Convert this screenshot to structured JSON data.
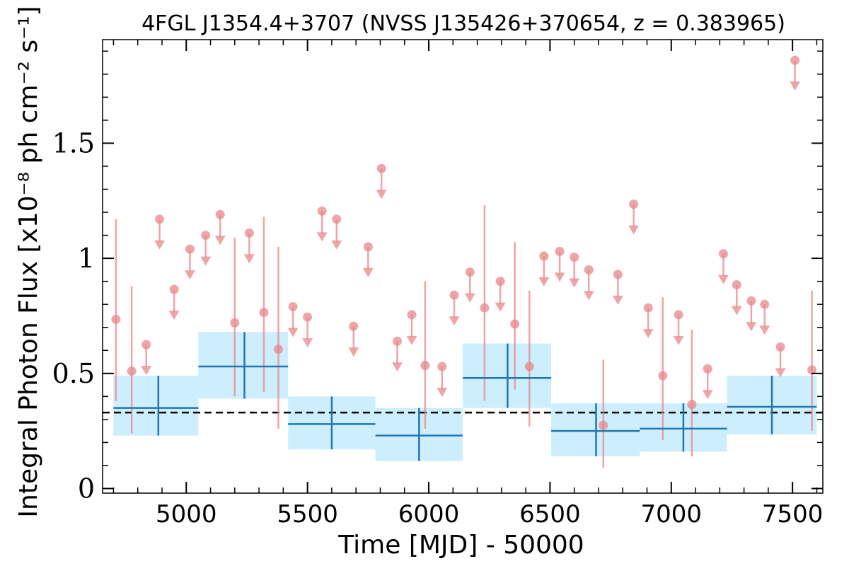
{
  "chart_data": {
    "type": "scatter",
    "title": "4FGL J1354.4+3707 (NVSS J135426+370654, z = 0.383965)",
    "xlabel": "Time [MJD] - 50000",
    "ylabel": "Integral Photon Flux [x10⁻⁸ ph cm⁻² s⁻¹]",
    "xlim": [
      4655,
      7625
    ],
    "ylim": [
      -0.02,
      1.95
    ],
    "x_ticks": [
      5000,
      5500,
      6000,
      6500,
      7000,
      7500
    ],
    "x_tick_labels": [
      "5000",
      "5500",
      "6000",
      "6500",
      "7000",
      "7500"
    ],
    "y_ticks": [
      0,
      0.5,
      1,
      1.5
    ],
    "y_tick_labels": [
      "0",
      "0.5",
      "1",
      "1.5"
    ],
    "mean_flux": 0.33,
    "colors": {
      "short_bins": "#e8878a",
      "long_bins": "#1f77b4",
      "long_bins_band": "#cdeefc",
      "mean_line": "#000000"
    },
    "long_bins": [
      {
        "x": 4885,
        "x_lo": 4700,
        "x_hi": 5050,
        "y": 0.35,
        "y_lo": 0.23,
        "y_hi": 0.49
      },
      {
        "x": 5240,
        "x_lo": 5050,
        "x_hi": 5420,
        "y": 0.53,
        "y_lo": 0.39,
        "y_hi": 0.68
      },
      {
        "x": 5600,
        "x_lo": 5420,
        "x_hi": 5780,
        "y": 0.28,
        "y_lo": 0.17,
        "y_hi": 0.4
      },
      {
        "x": 5960,
        "x_lo": 5780,
        "x_hi": 6140,
        "y": 0.23,
        "y_lo": 0.12,
        "y_hi": 0.35
      },
      {
        "x": 6325,
        "x_lo": 6140,
        "x_hi": 6505,
        "y": 0.48,
        "y_lo": 0.35,
        "y_hi": 0.63
      },
      {
        "x": 6690,
        "x_lo": 6505,
        "x_hi": 6870,
        "y": 0.25,
        "y_lo": 0.14,
        "y_hi": 0.37
      },
      {
        "x": 7050,
        "x_lo": 6870,
        "x_hi": 7230,
        "y": 0.26,
        "y_lo": 0.16,
        "y_hi": 0.37
      },
      {
        "x": 7415,
        "x_lo": 7230,
        "x_hi": 7600,
        "y": 0.355,
        "y_lo": 0.235,
        "y_hi": 0.49
      }
    ],
    "short_bins_detections": [
      {
        "x": 4710,
        "y": 0.735,
        "y_lo": 0.38,
        "y_hi": 1.17
      },
      {
        "x": 4775,
        "y": 0.51,
        "y_lo": 0.24,
        "y_hi": 0.88
      },
      {
        "x": 5200,
        "y": 0.72,
        "y_lo": 0.4,
        "y_hi": 1.09
      },
      {
        "x": 5320,
        "y": 0.765,
        "y_lo": 0.42,
        "y_hi": 1.18
      },
      {
        "x": 5380,
        "y": 0.605,
        "y_lo": 0.26,
        "y_hi": 1.05
      },
      {
        "x": 5985,
        "y": 0.535,
        "y_lo": 0.26,
        "y_hi": 0.9
      },
      {
        "x": 6230,
        "y": 0.785,
        "y_lo": 0.38,
        "y_hi": 1.23
      },
      {
        "x": 6355,
        "y": 0.715,
        "y_lo": 0.43,
        "y_hi": 1.07
      },
      {
        "x": 6415,
        "y": 0.53,
        "y_lo": 0.27,
        "y_hi": 0.86
      },
      {
        "x": 6720,
        "y": 0.275,
        "y_lo": 0.09,
        "y_hi": 0.56
      },
      {
        "x": 6965,
        "y": 0.49,
        "y_lo": 0.21,
        "y_hi": 0.83
      },
      {
        "x": 7085,
        "y": 0.365,
        "y_lo": 0.14,
        "y_hi": 0.69
      },
      {
        "x": 7580,
        "y": 0.515,
        "y_lo": 0.25,
        "y_hi": 0.86
      }
    ],
    "short_bins_upper_limits": [
      {
        "x": 4835,
        "y": 0.625
      },
      {
        "x": 4890,
        "y": 1.17
      },
      {
        "x": 4950,
        "y": 0.865
      },
      {
        "x": 5015,
        "y": 1.04
      },
      {
        "x": 5080,
        "y": 1.1
      },
      {
        "x": 5140,
        "y": 1.19
      },
      {
        "x": 5260,
        "y": 1.11
      },
      {
        "x": 5440,
        "y": 0.79
      },
      {
        "x": 5500,
        "y": 0.745
      },
      {
        "x": 5560,
        "y": 1.205
      },
      {
        "x": 5620,
        "y": 1.17
      },
      {
        "x": 5690,
        "y": 0.705
      },
      {
        "x": 5750,
        "y": 1.05
      },
      {
        "x": 5805,
        "y": 1.39
      },
      {
        "x": 5870,
        "y": 0.64
      },
      {
        "x": 5930,
        "y": 0.755
      },
      {
        "x": 6055,
        "y": 0.53
      },
      {
        "x": 6105,
        "y": 0.84
      },
      {
        "x": 6170,
        "y": 0.94
      },
      {
        "x": 6295,
        "y": 0.9
      },
      {
        "x": 6475,
        "y": 1.01
      },
      {
        "x": 6540,
        "y": 1.03
      },
      {
        "x": 6600,
        "y": 1.005
      },
      {
        "x": 6660,
        "y": 0.95
      },
      {
        "x": 6780,
        "y": 0.93
      },
      {
        "x": 6845,
        "y": 1.235
      },
      {
        "x": 6905,
        "y": 0.785
      },
      {
        "x": 7030,
        "y": 0.755
      },
      {
        "x": 7150,
        "y": 0.52
      },
      {
        "x": 7215,
        "y": 1.02
      },
      {
        "x": 7270,
        "y": 0.885
      },
      {
        "x": 7330,
        "y": 0.815
      },
      {
        "x": 7385,
        "y": 0.8
      },
      {
        "x": 7450,
        "y": 0.615
      },
      {
        "x": 7510,
        "y": 1.86
      }
    ]
  }
}
